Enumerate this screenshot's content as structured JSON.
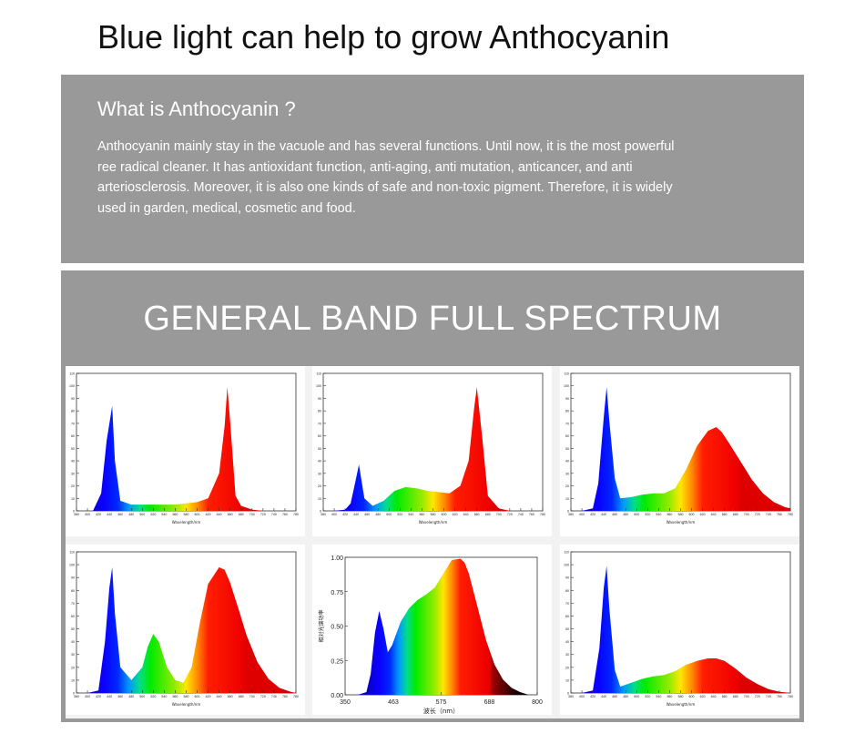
{
  "page": {
    "title": "Blue light can help to grow Anthocyanin"
  },
  "info": {
    "heading": "What is Anthocyanin ?",
    "lines": [
      "Anthocyanin mainly stay in the vacuole and has several functions. Until now, it is the most powerful",
      "ree radical cleaner. It has antioxidant function, anti-aging, anti mutation, anticancer, and anti",
      "arteriosclerosis. Moreover, it is also one kinds of safe and non-toxic pigment. Therefore, it is widely",
      "used in garden, medical,  cosmetic and food."
    ]
  },
  "spectrum": {
    "heading": "GENERAL BAND FULL SPECTRUM"
  },
  "chart_data": [
    {
      "type": "area",
      "xlabel": "Wavelength/nm",
      "ylabel": "",
      "xlim": [
        380,
        780
      ],
      "ylim": [
        0,
        110
      ],
      "xticks": [
        380,
        400,
        420,
        440,
        460,
        480,
        500,
        520,
        540,
        560,
        580,
        600,
        620,
        640,
        660,
        680,
        700,
        720,
        740,
        760,
        780
      ],
      "yticks": [
        0,
        10,
        20,
        30,
        40,
        50,
        60,
        70,
        80,
        90,
        100,
        110
      ],
      "x": [
        390,
        410,
        425,
        435,
        445,
        450,
        460,
        480,
        520,
        560,
        580,
        600,
        620,
        640,
        650,
        655,
        660,
        670,
        680,
        700,
        720
      ],
      "y": [
        0,
        0,
        14,
        56,
        84,
        40,
        8,
        5,
        5,
        5,
        6,
        7,
        10,
        30,
        68,
        99,
        72,
        12,
        4,
        1,
        0
      ]
    },
    {
      "type": "area",
      "xlabel": "Wavelength/nm",
      "ylabel": "",
      "xlim": [
        380,
        780
      ],
      "ylim": [
        0,
        110
      ],
      "xticks": [
        380,
        400,
        420,
        440,
        460,
        480,
        500,
        520,
        540,
        560,
        580,
        600,
        620,
        640,
        660,
        680,
        700,
        720,
        740,
        760,
        780
      ],
      "yticks": [
        0,
        10,
        20,
        30,
        40,
        50,
        60,
        70,
        80,
        90,
        100,
        110
      ],
      "x": [
        400,
        420,
        430,
        438,
        445,
        455,
        470,
        490,
        510,
        530,
        550,
        570,
        590,
        610,
        630,
        645,
        655,
        660,
        670,
        680,
        700,
        720
      ],
      "y": [
        0,
        1,
        6,
        22,
        37,
        10,
        4,
        8,
        16,
        19,
        18,
        16,
        15,
        14,
        20,
        40,
        82,
        99,
        58,
        12,
        2,
        0
      ]
    },
    {
      "type": "area",
      "xlabel": "Wavelength/nm",
      "ylabel": "",
      "xlim": [
        380,
        780
      ],
      "ylim": [
        0,
        110
      ],
      "xticks": [
        380,
        400,
        420,
        440,
        460,
        480,
        500,
        520,
        540,
        560,
        580,
        600,
        620,
        640,
        660,
        680,
        700,
        720,
        740,
        760,
        780
      ],
      "yticks": [
        0,
        10,
        20,
        30,
        40,
        50,
        60,
        70,
        80,
        90,
        100,
        110
      ],
      "x": [
        400,
        420,
        430,
        440,
        445,
        450,
        460,
        470,
        490,
        510,
        530,
        550,
        570,
        590,
        610,
        630,
        645,
        655,
        670,
        690,
        710,
        730,
        750,
        770,
        780
      ],
      "y": [
        0,
        2,
        22,
        75,
        99,
        72,
        26,
        10,
        11,
        13,
        14,
        14,
        18,
        33,
        52,
        64,
        67,
        63,
        53,
        39,
        25,
        14,
        7,
        3,
        2
      ]
    },
    {
      "type": "area",
      "xlabel": "Wavelength/nm",
      "ylabel": "",
      "xlim": [
        380,
        780
      ],
      "ylim": [
        0,
        110
      ],
      "xticks": [
        380,
        400,
        420,
        440,
        460,
        480,
        500,
        520,
        540,
        560,
        580,
        600,
        620,
        640,
        660,
        680,
        700,
        720,
        740,
        760,
        780
      ],
      "yticks": [
        0,
        10,
        20,
        30,
        40,
        50,
        60,
        70,
        80,
        90,
        100,
        110
      ],
      "x": [
        400,
        420,
        432,
        440,
        445,
        450,
        460,
        480,
        500,
        510,
        520,
        530,
        545,
        560,
        575,
        590,
        605,
        620,
        640,
        650,
        660,
        675,
        690,
        710,
        730,
        750,
        770,
        780
      ],
      "y": [
        0,
        2,
        40,
        82,
        98,
        62,
        20,
        10,
        20,
        36,
        46,
        40,
        20,
        10,
        8,
        20,
        55,
        85,
        98,
        96,
        86,
        66,
        45,
        24,
        11,
        4,
        1,
        0
      ]
    },
    {
      "type": "area",
      "xlabel": "波长（nm）",
      "ylabel": "相对光谱功率",
      "xlim": [
        350,
        800
      ],
      "ylim": [
        0,
        1.0
      ],
      "xticks": [
        350,
        463,
        575,
        688,
        800
      ],
      "yticks": [
        0.0,
        0.25,
        0.5,
        0.75,
        1.0
      ],
      "x": [
        380,
        400,
        410,
        420,
        430,
        440,
        450,
        460,
        480,
        500,
        520,
        540,
        560,
        580,
        600,
        620,
        630,
        640,
        660,
        680,
        700,
        720,
        740,
        760,
        780
      ],
      "y": [
        0.0,
        0.02,
        0.15,
        0.45,
        0.61,
        0.48,
        0.31,
        0.36,
        0.53,
        0.63,
        0.69,
        0.73,
        0.78,
        0.88,
        0.98,
        0.99,
        0.96,
        0.88,
        0.64,
        0.4,
        0.22,
        0.11,
        0.05,
        0.02,
        0.0
      ]
    },
    {
      "type": "area",
      "xlabel": "Wavelength/nm",
      "ylabel": "",
      "xlim": [
        380,
        780
      ],
      "ylim": [
        0,
        110
      ],
      "xticks": [
        380,
        400,
        420,
        440,
        460,
        480,
        500,
        520,
        540,
        560,
        580,
        600,
        620,
        640,
        660,
        680,
        700,
        720,
        740,
        760,
        780
      ],
      "yticks": [
        0,
        10,
        20,
        30,
        40,
        50,
        60,
        70,
        80,
        90,
        100,
        110
      ],
      "x": [
        400,
        420,
        432,
        440,
        445,
        450,
        460,
        470,
        490,
        510,
        530,
        550,
        570,
        590,
        610,
        630,
        645,
        660,
        680,
        700,
        720,
        740,
        760,
        780
      ],
      "y": [
        0,
        2,
        35,
        82,
        99,
        66,
        18,
        5,
        8,
        11,
        13,
        14,
        17,
        22,
        25,
        27,
        27,
        25,
        19,
        12,
        7,
        3,
        1,
        0
      ]
    }
  ]
}
